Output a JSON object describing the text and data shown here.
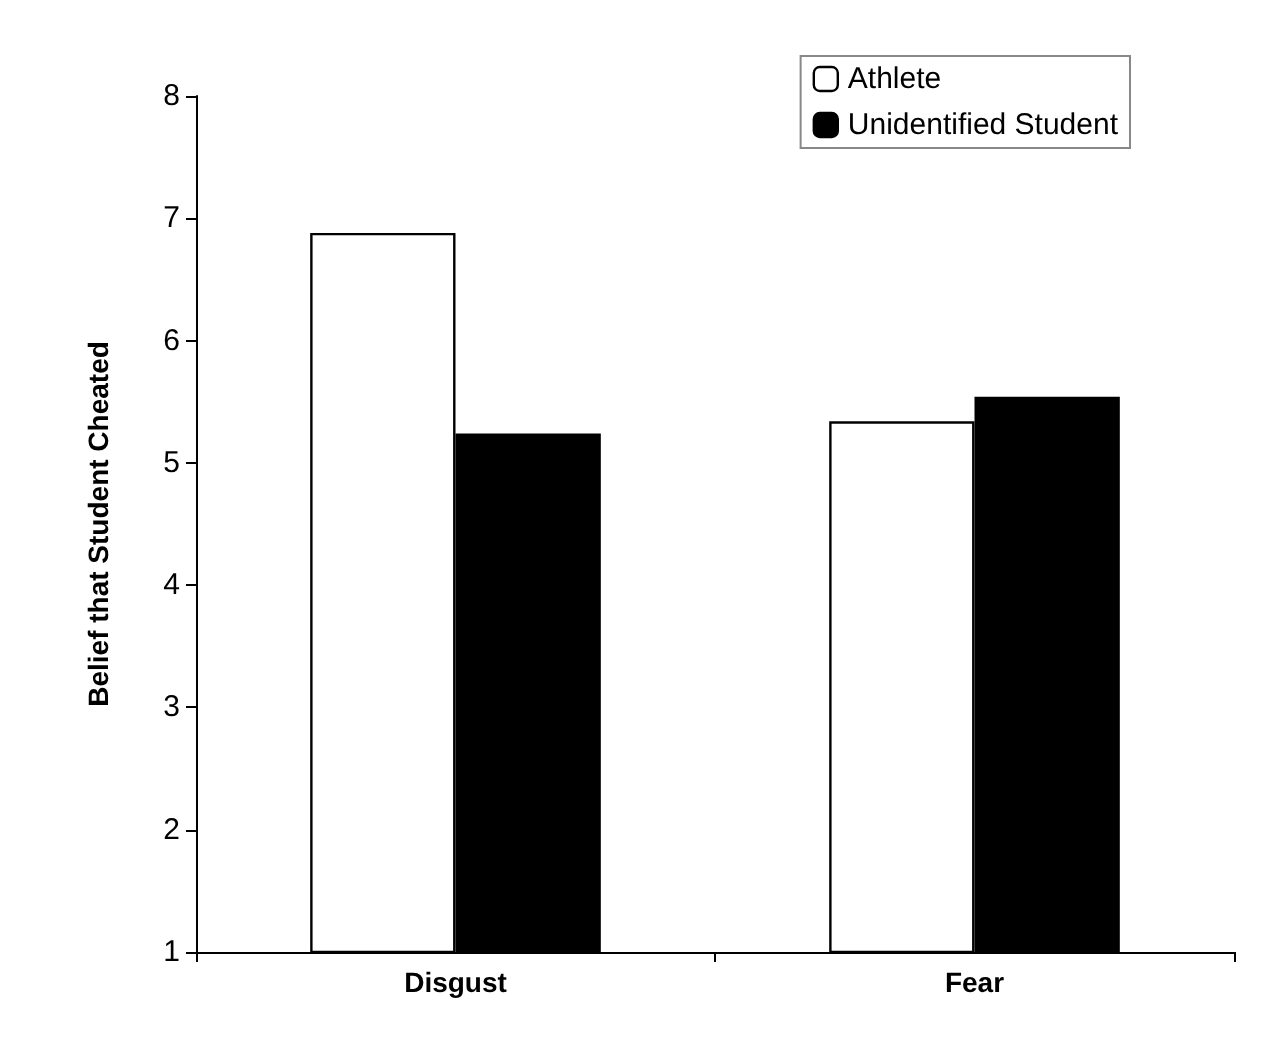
{
  "chart_data": {
    "type": "bar",
    "ylabel": "Belief that Student Cheated",
    "categories": [
      "Disgust",
      "Fear"
    ],
    "series": [
      {
        "name": "Athlete",
        "color": "#ffffff",
        "values": [
          6.88,
          5.34
        ]
      },
      {
        "name": "Unidentified Student",
        "color": "#000000",
        "values": [
          5.24,
          5.54
        ]
      }
    ],
    "ylim": [
      1,
      8
    ],
    "yticks": [
      1,
      2,
      3,
      4,
      5,
      6,
      7,
      8
    ],
    "grid": false,
    "legend": "top right"
  }
}
